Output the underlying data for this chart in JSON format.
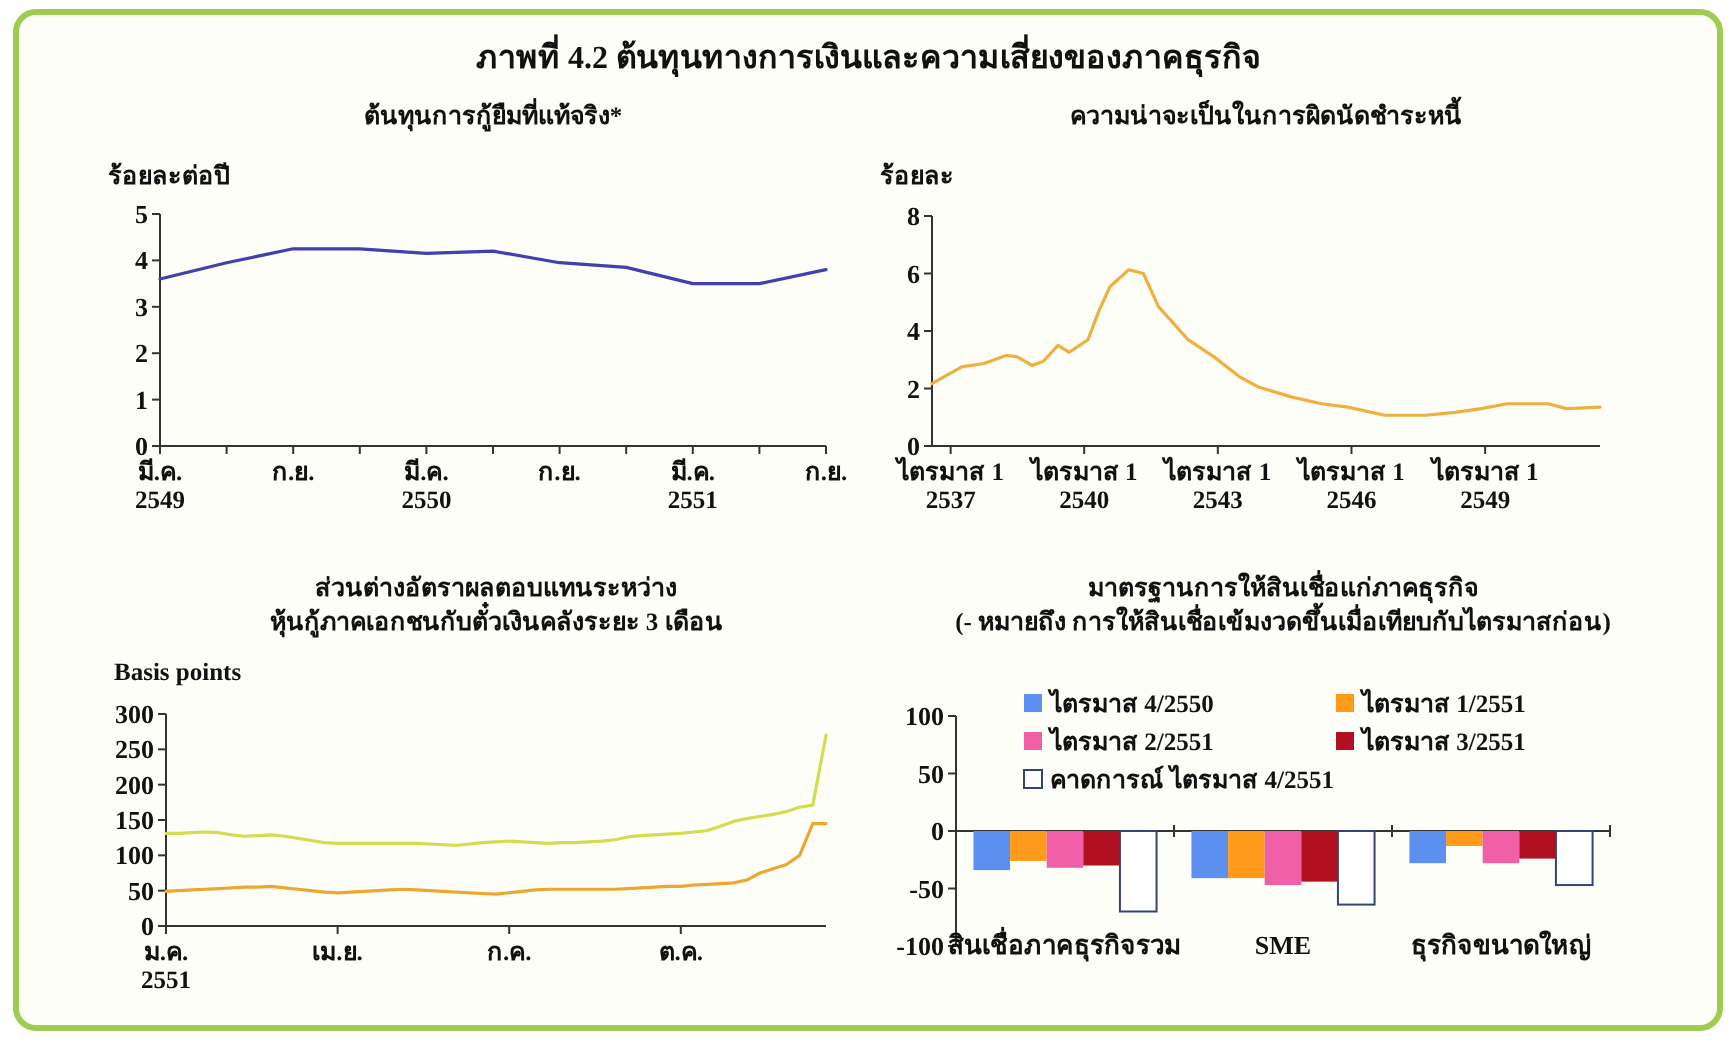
{
  "chart_data": [
    {
      "type": "other",
      "title": "ภาพที่ 4.2  ต้นทุนทางการเงินและความเสี่ยงของภาคธุรกิจ"
    },
    {
      "type": "line",
      "title": "ต้นทุนการกู้ยืมที่แท้จริง*",
      "ylabel": "ร้อยละต่อปี",
      "categories": [
        "มี.ค.\n2549",
        null,
        "ก.ย.",
        null,
        "มี.ค.\n2550",
        null,
        "ก.ย.",
        null,
        "มี.ค.\n2551",
        null,
        "ก.ย."
      ],
      "series": [
        {
          "color": "#4040b0",
          "values": [
            3.6,
            3.95,
            4.25,
            4.25,
            4.15,
            4.2,
            3.95,
            3.85,
            3.5,
            3.5,
            3.8
          ]
        }
      ],
      "ylim": [
        0,
        5
      ],
      "yticks": [
        0,
        1,
        2,
        3,
        4,
        5
      ]
    },
    {
      "type": "line",
      "title": "ความน่าจะเป็นในการผิดนัดชำระหนี้",
      "ylabel": "ร้อยละ",
      "x": [
        "2536-08",
        "2537-04",
        "2537-10",
        "2538-04",
        "2538-07",
        "2538-11",
        "2539-02",
        "2539-06",
        "2539-09",
        "2540-02",
        "2540-05",
        "2540-08",
        "2541-01",
        "2541-05",
        "2541-09",
        "2542-05",
        "2542-12",
        "2543-07",
        "2543-12",
        "2544-09",
        "2545-05",
        "2545-12",
        "2546-10",
        "2547-09",
        "2548-05",
        "2548-12",
        "2549-07",
        "2550-06",
        "2550-11",
        "2551-08"
      ],
      "series": [
        {
          "color": "#eeb040",
          "values": [
            2.17,
            2.75,
            2.87,
            3.15,
            3.1,
            2.8,
            2.95,
            3.5,
            3.26,
            3.7,
            4.7,
            5.55,
            6.13,
            6.0,
            4.85,
            3.7,
            3.1,
            2.4,
            2.05,
            1.7,
            1.47,
            1.35,
            1.07,
            1.07,
            1.17,
            1.3,
            1.47,
            1.47,
            1.3,
            1.35
          ]
        }
      ],
      "xlim": [
        "2536-08",
        "2551-08"
      ],
      "xticks": [
        {
          "value": "2537-01",
          "label": "ไตรมาส 1\n2537"
        },
        {
          "value": "2540-01",
          "label": "ไตรมาส 1\n2540"
        },
        {
          "value": "2543-01",
          "label": "ไตรมาส 1\n2543"
        },
        {
          "value": "2546-01",
          "label": "ไตรมาส 1\n2546"
        },
        {
          "value": "2549-01",
          "label": "ไตรมาส 1\n2549"
        }
      ],
      "ylim": [
        0,
        8
      ],
      "yticks": [
        0,
        2,
        4,
        6,
        8
      ]
    },
    {
      "type": "line",
      "title": "ส่วนต่างอัตราผลตอบแทนระหว่าง\nหุ้นกู้ภาคเอกชนกับตั๋วเงินคลังระยะ 3 เดือน",
      "ylabel": "Basis points",
      "series": [
        {
          "color": "#d4dc50",
          "values": [
            131,
            131,
            132,
            133,
            132,
            129,
            127,
            128,
            129,
            127,
            124,
            121,
            118,
            117,
            117,
            117,
            117,
            117,
            117,
            117,
            116,
            115,
            114,
            116,
            118,
            119,
            120,
            119,
            118,
            117,
            118,
            118,
            119,
            120,
            122,
            126,
            128,
            129,
            130,
            131,
            133,
            135,
            141,
            148,
            152,
            155,
            158,
            162,
            168,
            171,
            270
          ]
        },
        {
          "color": "#eaa830",
          "values": [
            49,
            50,
            51,
            52,
            53,
            54,
            55,
            55,
            56,
            54,
            52,
            50,
            48,
            47,
            48,
            49,
            50,
            51,
            52,
            51,
            50,
            49,
            48,
            47,
            46,
            45,
            47,
            49,
            51,
            52,
            52,
            52,
            52,
            52,
            52,
            53,
            54,
            55,
            56,
            56,
            58,
            59,
            60,
            61,
            65,
            75,
            81,
            87,
            100,
            145,
            145
          ]
        }
      ],
      "categories": [
        "ม.ค.\n2551",
        null,
        null,
        null,
        null,
        null,
        null,
        null,
        null,
        null,
        null,
        null,
        null,
        "เม.ย.",
        null,
        null,
        null,
        null,
        null,
        null,
        null,
        null,
        null,
        null,
        null,
        null,
        "ก.ค.",
        null,
        null,
        null,
        null,
        null,
        null,
        null,
        null,
        null,
        null,
        null,
        null,
        "ต.ค.",
        null,
        null,
        null,
        null,
        null,
        null,
        null,
        null,
        null,
        null,
        null
      ],
      "ylim": [
        0,
        300
      ],
      "yticks": [
        0,
        50,
        100,
        150,
        200,
        250,
        300
      ]
    },
    {
      "type": "bar",
      "title": "มาตรฐานการให้สินเชื่อแก่ภาคธุรกิจ",
      "subtitle": "(- หมายถึง การให้สินเชื่อเข้มงวดขึ้นเมื่อเทียบกับไตรมาสก่อน)",
      "categories": [
        "สินเชื่อภาคธุรกิจรวม",
        "SME",
        "ธุรกิจขนาดใหญ่"
      ],
      "series": [
        {
          "name": "ไตรมาส 4/2550",
          "color": "#5b8ff0",
          "values": [
            -34,
            -41,
            -28
          ]
        },
        {
          "name": "ไตรมาส 1/2551",
          "color": "#ff9a1a",
          "values": [
            -26,
            -41,
            -13
          ]
        },
        {
          "name": "ไตรมาส 2/2551",
          "color": "#f060a8",
          "values": [
            -32,
            -47,
            -28
          ]
        },
        {
          "name": "ไตรมาส 3/2551",
          "color": "#b01020",
          "values": [
            -30,
            -44,
            -24
          ]
        },
        {
          "name": "คาดการณ์ ไตรมาส 4/2551",
          "color": "#ffffff",
          "values": [
            -70,
            -64,
            -47
          ]
        }
      ],
      "ylim": [
        -100,
        100
      ],
      "yticks": [
        -100,
        -50,
        0,
        50,
        100
      ],
      "legend": "top"
    }
  ]
}
